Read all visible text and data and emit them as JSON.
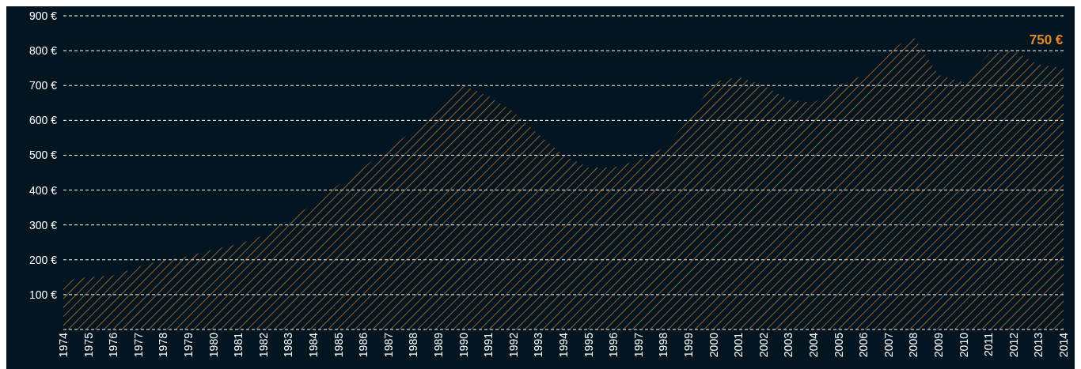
{
  "chart_data": {
    "type": "area",
    "categories": [
      "1974",
      "1975",
      "1976",
      "1977",
      "1978",
      "1979",
      "1980",
      "1981",
      "1982",
      "1983",
      "1984",
      "1985",
      "1986",
      "1987",
      "1988",
      "1989",
      "1990",
      "1991",
      "1992",
      "1993",
      "1994",
      "1995",
      "1996",
      "1997",
      "1998",
      "1999",
      "2000",
      "2001",
      "2002",
      "2003",
      "2004",
      "2005",
      "2006",
      "2007",
      "2008",
      "2009",
      "2010",
      "2011",
      "2012",
      "2013",
      "2014"
    ],
    "series": [
      {
        "color": "#e08a2e",
        "values": [
          140,
          150,
          155,
          180,
          200,
          210,
          230,
          245,
          270,
          315,
          360,
          415,
          465,
          520,
          570,
          630,
          700,
          670,
          625,
          560,
          500,
          465,
          465,
          485,
          520,
          600,
          710,
          725,
          700,
          660,
          650,
          700,
          730,
          800,
          840,
          730,
          710,
          790,
          800,
          760,
          750
        ]
      }
    ],
    "ylim": [
      0,
      900
    ],
    "yticks": [
      {
        "value": 0,
        "label": null
      },
      {
        "value": 100,
        "label": "100 €"
      },
      {
        "value": 200,
        "label": "200 €"
      },
      {
        "value": 300,
        "label": "300 €"
      },
      {
        "value": 400,
        "label": "400 €"
      },
      {
        "value": 500,
        "label": "500 €"
      },
      {
        "value": 600,
        "label": "600 €"
      },
      {
        "value": 700,
        "label": "700 €"
      },
      {
        "value": 800,
        "label": "800 €"
      },
      {
        "value": 900,
        "label": "900 €"
      }
    ],
    "grid": "y",
    "annotations": [
      {
        "text": "750 €",
        "x": "2014",
        "y": 750
      }
    ]
  }
}
